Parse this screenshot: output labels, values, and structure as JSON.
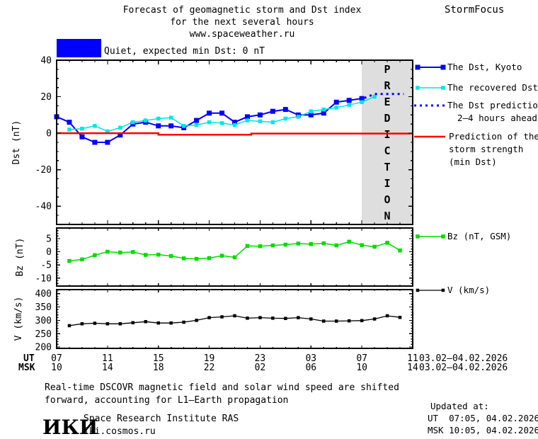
{
  "header": {
    "title_line1": "Forecast of geomagnetic storm and Dst index",
    "title_line2": "for the next several hours",
    "title_line3": "www.spaceweather.ru",
    "brand": "StormFocus"
  },
  "status": {
    "label": "Quiet, expected min Dst: 0 nT"
  },
  "legend": {
    "dst_kyoto": "The Dst, Kyoto",
    "recovered": "The recovered Dst",
    "prediction_line1": "The Dst prediction",
    "prediction_line2": "2–4 hours ahead",
    "storm_line1": "Prediction of the",
    "storm_line2": "storm strength",
    "storm_line3": "(min Dst)",
    "bz": "Bz (nT, GSM)",
    "v": "V (km/s)"
  },
  "axes": {
    "ut_label": "UT",
    "msk_label": "MSK",
    "ut_ticks": [
      "07",
      "11",
      "15",
      "19",
      "23",
      "03",
      "07",
      "11"
    ],
    "msk_ticks": [
      "10",
      "14",
      "18",
      "22",
      "02",
      "06",
      "10",
      "14"
    ],
    "ut_date": "03.02–04.02.2026",
    "msk_date": "03.02–04.02.2026"
  },
  "footer": {
    "note_line1": "Real-time DSCOVR magnetic field and solar wind speed are shifted",
    "note_line2": "forward, accounting for L1–Earth propagation",
    "logo": "ИКИ",
    "institute": "Space Research Institute RAS",
    "site": "iki.cosmos.ru",
    "updated_label": "Updated at:",
    "updated_ut": "UT  07:05, 04.02.2026",
    "updated_msk": "MSK 10:05, 04.02.2026"
  },
  "colors": {
    "blue": "#0000FF",
    "cyan": "#00E6E6",
    "red": "#FF0000",
    "green": "#00DC00",
    "black": "#000000",
    "band": "#DEDEDE",
    "band_text": "#BDBDBD"
  },
  "chart_data": [
    {
      "type": "line",
      "ylabel": "Dst (nT)",
      "ylim": [
        -50,
        40
      ],
      "yticks": [
        40,
        20,
        0,
        -20,
        -40
      ],
      "yminor_step": 5,
      "xlim_hours": [
        0,
        28
      ],
      "x_unit": "hours from 03.02.2026 07:00 UT, major ticks every 4 h",
      "prediction_band_hours": [
        24,
        28
      ],
      "prediction_band_label": "PREDICTION",
      "series": [
        {
          "id": "dst-kyoto",
          "name": "The Dst, Kyoto",
          "color": "blue",
          "marker": "square",
          "x_start": 0,
          "values": [
            9,
            6,
            -2,
            -5,
            -5,
            -1,
            5,
            6,
            4,
            4,
            3,
            7,
            11,
            11,
            6,
            9,
            10,
            12,
            13,
            10,
            10,
            11,
            17,
            18,
            19
          ]
        },
        {
          "id": "recovered-dst",
          "name": "The recovered Dst",
          "color": "cyan",
          "marker": "square",
          "x_start": 1,
          "values": [
            2,
            2.5,
            4,
            1,
            3,
            6,
            7,
            8,
            8.5,
            4,
            4.5,
            6,
            5.5,
            4.5,
            7,
            6.5,
            6,
            8,
            9,
            12,
            13,
            14,
            15.5,
            17,
            20
          ]
        },
        {
          "id": "dst-prediction",
          "name": "The Dst prediction 2–4 hours ahead",
          "color": "blue",
          "style": "dotted",
          "x": [
            24.2,
            25,
            27.3
          ],
          "values": [
            19.3,
            21.5,
            21.5
          ]
        },
        {
          "id": "storm-prediction",
          "name": "Prediction of the storm strength (min Dst)",
          "color": "red",
          "x": [
            0,
            8,
            8,
            15.3,
            15.3,
            28
          ],
          "values": [
            0,
            0,
            -0.8,
            -0.8,
            -0.2,
            -0.2
          ]
        }
      ]
    },
    {
      "type": "line",
      "ylabel": "Bz (nT)",
      "ylim": [
        -13,
        9
      ],
      "yticks": [
        5,
        0,
        -5,
        -10
      ],
      "yminor_step": 1,
      "xlim_hours": [
        0,
        28
      ],
      "series": [
        {
          "id": "bz",
          "name": "Bz (nT, GSM)",
          "color": "green",
          "marker": "square",
          "x_start": 1,
          "values": [
            -3.5,
            -2.9,
            -1.3,
            0,
            -0.3,
            -0.1,
            -1.2,
            -1.1,
            -1.6,
            -2.5,
            -2.7,
            -2.4,
            -1.5,
            -2.1,
            2.2,
            2.1,
            2.4,
            2.7,
            3.1,
            2.9,
            3.2,
            2.4,
            3.8,
            2.5,
            1.9,
            3.4,
            0.5
          ]
        }
      ]
    },
    {
      "type": "line",
      "ylabel": "V (km/s)",
      "ylim": [
        195,
        415
      ],
      "yticks": [
        400,
        350,
        300,
        250,
        200
      ],
      "yminor_step": 10,
      "xlim_hours": [
        0,
        28
      ],
      "series": [
        {
          "id": "v",
          "name": "V (km/s)",
          "color": "black",
          "marker": "square",
          "x_start": 1,
          "values": [
            280,
            287,
            289,
            287,
            287,
            291,
            295,
            290,
            290,
            293,
            300,
            310,
            313,
            317,
            308,
            310,
            308,
            307,
            310,
            305,
            297,
            297,
            298,
            299,
            305,
            317,
            311
          ]
        }
      ]
    }
  ]
}
